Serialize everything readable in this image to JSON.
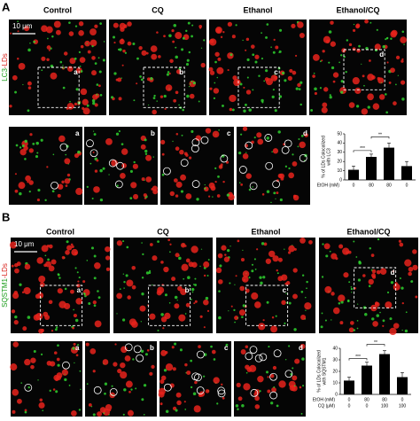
{
  "panels": [
    {
      "label": "A",
      "channel": [
        "LC3",
        "-LDs"
      ],
      "scale_bar": "10 μm",
      "columns": [
        "Control",
        "CQ",
        "Ethanol",
        "Ethanol/CQ"
      ],
      "insets": [
        "a",
        "b",
        "c",
        "d"
      ]
    },
    {
      "label": "B",
      "channel": [
        "SQSTM1",
        "-LDs"
      ],
      "scale_bar": "10 μm",
      "columns": [
        "Control",
        "CQ",
        "Ethanol",
        "Ethanol/CQ"
      ],
      "insets": [
        "a",
        "b",
        "c",
        "d"
      ]
    }
  ],
  "chart_data": [
    {
      "type": "bar",
      "ylabel": [
        "% of LDs Colocalized",
        "with LC3"
      ],
      "categories": [
        null,
        null,
        null,
        null
      ],
      "values": [
        11,
        25,
        35,
        15
      ],
      "errors": [
        4,
        3,
        5,
        5
      ],
      "color": "#000000",
      "ylim": [
        0,
        50
      ],
      "yticks": [
        0,
        10,
        20,
        30,
        40,
        50
      ],
      "annotations": [
        "***",
        "**"
      ],
      "conditions": [
        {
          "name": "EtOH (mM)",
          "values": [
            0,
            80,
            80,
            0
          ]
        }
      ]
    },
    {
      "type": "bar",
      "ylabel": [
        "% of LDs Colocalized",
        "with SQSTM1"
      ],
      "categories": [
        null,
        null,
        null,
        null
      ],
      "values": [
        12,
        25,
        35,
        15
      ],
      "errors": [
        3,
        3,
        3,
        4
      ],
      "color": "#000000",
      "ylim": [
        0,
        40
      ],
      "yticks": [
        0,
        10,
        20,
        30,
        40
      ],
      "annotations": [
        "***",
        "**"
      ],
      "conditions": [
        {
          "name": "EtOH (mM)",
          "values": [
            0,
            80,
            80,
            0
          ]
        },
        {
          "name": "CQ (μM)",
          "values": [
            0,
            0,
            100,
            100
          ]
        }
      ]
    }
  ]
}
